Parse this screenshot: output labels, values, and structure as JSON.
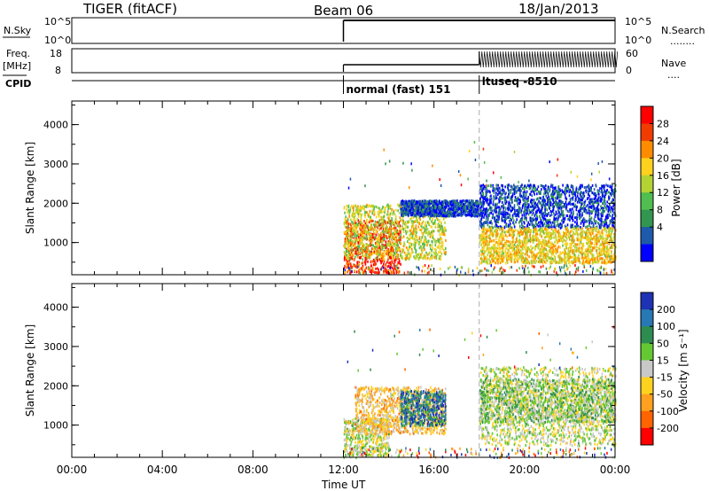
{
  "header": {
    "title": "TIGER (fitACF)",
    "beam": "Beam 06",
    "date": "18/Jan/2013"
  },
  "labels": {
    "nsky": "N.Sky",
    "nsearch": "N.Search",
    "freq": "Freq.",
    "mhz": "[MHz]",
    "cpid": "CPID",
    "nave": "Nave",
    "dots": "........",
    "dots_short": "...."
  },
  "nsky_panel": {
    "left_ticks": [
      "10^5",
      "10^0"
    ],
    "right_ticks": [
      "10^5",
      "10^0"
    ]
  },
  "freq_panel": {
    "left_ticks": [
      "18",
      "8"
    ],
    "right_ticks": [
      "60",
      "0"
    ]
  },
  "cpid_panel": {
    "modes": [
      {
        "label": "normal (fast) 151",
        "start_hour": 12.0
      },
      {
        "label": "ltuseq -8510",
        "start_hour": 18.0
      }
    ]
  },
  "x_axis": {
    "label": "Time UT",
    "ticks": [
      "00:00",
      "04:00",
      "08:00",
      "12:00",
      "16:00",
      "20:00",
      "00:00"
    ],
    "tick_hours": [
      0,
      4,
      8,
      12,
      16,
      20,
      24
    ]
  },
  "power_colorbar": {
    "label": "Power [dB]",
    "ticks": [
      "28",
      "24",
      "20",
      "16",
      "12",
      "8",
      "4"
    ],
    "colors": [
      "#ff0000",
      "#f03c00",
      "#ff8c00",
      "#ffd21e",
      "#b4d232",
      "#50be50",
      "#329650",
      "#1e5aaa",
      "#0000ff"
    ]
  },
  "velocity_colorbar": {
    "label": "Velocity [m s⁻¹]",
    "ticks": [
      "200",
      "100",
      "50",
      "15",
      "-15",
      "-50",
      "-100",
      "-200"
    ],
    "colors": [
      "#1e32b4",
      "#2878b4",
      "#2d8c50",
      "#64c832",
      "#c8c8c8",
      "#ffd21e",
      "#ffa01e",
      "#ff6400",
      "#ff0000"
    ]
  },
  "chart_data": [
    {
      "type": "heatmap",
      "title": "",
      "xlabel": "Time UT",
      "ylabel": "Slant Range [km]",
      "xlim_hours": [
        0,
        24
      ],
      "ylim_km": [
        180,
        4600
      ],
      "y_ticks": [
        1000,
        2000,
        3000,
        4000
      ],
      "colorbar": "Power [dB]",
      "colorbar_range": [
        0,
        30
      ],
      "scatter_regions": [
        {
          "t0": 12.0,
          "t1": 14.5,
          "r0": 250,
          "r1": 1600,
          "value": 27
        },
        {
          "t0": 12.0,
          "t1": 16.5,
          "r0": 600,
          "r1": 2000,
          "value": 16
        },
        {
          "t0": 14.5,
          "t1": 18.0,
          "r0": 1700,
          "r1": 2100,
          "value": 4
        },
        {
          "t0": 18.0,
          "t1": 24.0,
          "r0": 1400,
          "r1": 2500,
          "value": 4
        },
        {
          "t0": 18.0,
          "t1": 24.0,
          "r0": 500,
          "r1": 1400,
          "value": 18
        }
      ]
    },
    {
      "type": "heatmap",
      "title": "",
      "xlabel": "Time UT",
      "ylabel": "Slant Range [km]",
      "xlim_hours": [
        0,
        24
      ],
      "ylim_km": [
        180,
        4600
      ],
      "y_ticks": [
        1000,
        2000,
        3000,
        4000
      ],
      "colorbar": "Velocity [m s⁻¹]",
      "colorbar_range": [
        -250,
        250
      ],
      "scatter_regions": [
        {
          "t0": 12.0,
          "t1": 14.0,
          "r0": 250,
          "r1": 1200,
          "value": 0
        },
        {
          "t0": 12.5,
          "t1": 16.5,
          "r0": 800,
          "r1": 2000,
          "value": -60
        },
        {
          "t0": 14.5,
          "t1": 16.5,
          "r0": 1000,
          "r1": 1900,
          "value": 150
        },
        {
          "t0": 18.0,
          "t1": 24.0,
          "r0": 500,
          "r1": 2500,
          "value": 0
        },
        {
          "t0": 18.0,
          "t1": 24.0,
          "r0": 1100,
          "r1": 2200,
          "value": 30
        }
      ]
    }
  ]
}
